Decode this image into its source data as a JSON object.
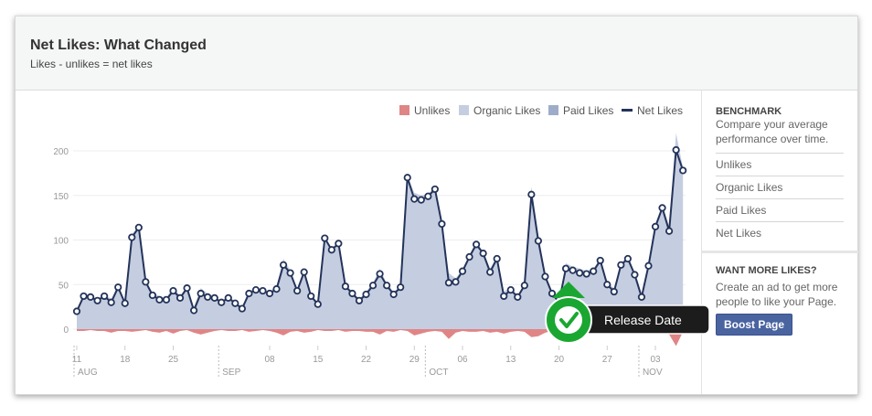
{
  "header": {
    "title": "Net Likes: What Changed",
    "subtitle": "Likes - unlikes = net likes"
  },
  "sidebar": {
    "benchmark_title": "BENCHMARK",
    "benchmark_text": "Compare your average performance over time.",
    "links": [
      "Unlikes",
      "Organic Likes",
      "Paid Likes",
      "Net Likes"
    ],
    "promo_title": "WANT MORE LIKES?",
    "promo_text": "Create an ad to get more people to like your Page.",
    "boost_label": "Boost Page"
  },
  "annotation": {
    "label": "Release Date",
    "icon": "checkmark-icon",
    "color": "#1aa731"
  },
  "chart_data": {
    "type": "area",
    "legend": [
      "Unlikes",
      "Organic Likes",
      "Paid Likes",
      "Net Likes"
    ],
    "legend_placement": "top-right",
    "colors": {
      "Unlikes": "#e08585",
      "Organic Likes": "#c5cde0",
      "Paid Likes": "#9eacc9",
      "Net Likes": "#23335a"
    },
    "ylim": [
      -20,
      220
    ],
    "yticks": [
      0,
      50,
      100,
      150,
      200
    ],
    "x_start": "Aug 11",
    "x_end": "Nov 07",
    "xtick_labels": [
      "11",
      "18",
      "25",
      "08",
      "15",
      "22",
      "29",
      "06",
      "13",
      "20",
      "27",
      "03"
    ],
    "xtick_days": [
      0,
      7,
      14,
      28,
      35,
      42,
      49,
      56,
      63,
      70,
      77,
      84
    ],
    "month_labels": [
      "AUG",
      "SEP",
      "OCT",
      "NOV"
    ],
    "month_days": [
      0,
      21,
      51,
      82
    ],
    "net_likes": [
      20,
      37,
      36,
      32,
      37,
      30,
      47,
      29,
      103,
      114,
      53,
      38,
      33,
      33,
      43,
      35,
      46,
      21,
      40,
      36,
      35,
      30,
      35,
      29,
      23,
      40,
      44,
      43,
      40,
      45,
      72,
      63,
      43,
      64,
      37,
      28,
      102,
      89,
      96,
      48,
      40,
      32,
      39,
      49,
      62,
      49,
      39,
      47,
      170,
      146,
      145,
      149,
      157,
      118,
      52,
      53,
      65,
      81,
      95,
      85,
      64,
      79,
      37,
      44,
      36,
      49,
      151,
      99,
      59,
      40,
      30,
      68,
      66,
      63,
      62,
      65,
      77,
      50,
      42,
      72,
      79,
      61,
      36,
      71,
      115,
      136,
      110,
      201,
      178
    ],
    "unlikes": [
      -2,
      -2,
      -1,
      -2,
      -2,
      -4,
      -2,
      -2,
      -3,
      -2,
      -1,
      -3,
      -4,
      -2,
      -5,
      -2,
      -1,
      -4,
      -6,
      -4,
      -2,
      -1,
      -2,
      -2,
      -1,
      -3,
      -2,
      -1,
      -2,
      -4,
      -7,
      -3,
      -2,
      -4,
      -3,
      -1,
      -2,
      -2,
      -1,
      -3,
      -2,
      -2,
      -3,
      -3,
      -6,
      -2,
      -3,
      -1,
      -2,
      -7,
      -5,
      -3,
      -2,
      -3,
      -11,
      -4,
      -2,
      -3,
      -3,
      -2,
      -4,
      -3,
      -5,
      -3,
      -2,
      -3,
      -9,
      -8,
      -4,
      -2,
      -3,
      -6,
      -4,
      -5,
      -3,
      -3,
      -2,
      -3,
      -4,
      -2,
      -3,
      -2,
      -4,
      -3,
      -3,
      -4,
      -6,
      -19,
      -3
    ]
  }
}
